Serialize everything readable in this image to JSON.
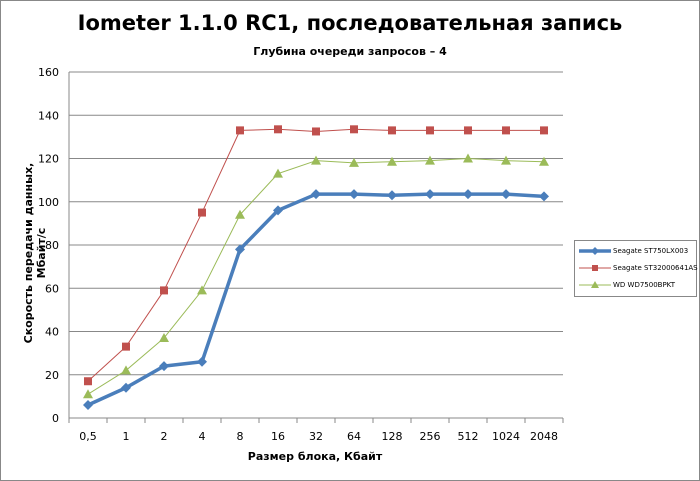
{
  "chart_data": {
    "type": "line",
    "title": "Iometer 1.1.0 RC1, последовательная запись",
    "subtitle": "Глубина очереди запросов – 4",
    "xlabel": "Размер блока, Кбайт",
    "ylabel": "Скорость передачи данных, Мбайт/с",
    "categories": [
      "0,5",
      "1",
      "2",
      "4",
      "8",
      "16",
      "32",
      "64",
      "128",
      "256",
      "512",
      "1024",
      "2048"
    ],
    "ylim": [
      0,
      160
    ],
    "yticks": [
      "0",
      "20",
      "40",
      "60",
      "80",
      "100",
      "120",
      "140",
      "160"
    ],
    "grid": true,
    "legend_position": "right",
    "series": [
      {
        "name": "Seagate ST750LX003",
        "color": "#4a7ebb",
        "marker": "diamond",
        "values": [
          6,
          14,
          24,
          26,
          78,
          96,
          103.5,
          103.5,
          103,
          103.5,
          103.5,
          103.5,
          102.5
        ]
      },
      {
        "name": "Seagate ST32000641AS",
        "color": "#c0504d",
        "marker": "square",
        "values": [
          17,
          33,
          59,
          95,
          133,
          133.5,
          132.5,
          133.5,
          133,
          133,
          133,
          133,
          133
        ]
      },
      {
        "name": "WD WD7500BPKT",
        "color": "#9bbb59",
        "marker": "triangle",
        "values": [
          11,
          22,
          37,
          59,
          94,
          113,
          119,
          118,
          118.5,
          119,
          120,
          119,
          118.5
        ]
      }
    ]
  }
}
